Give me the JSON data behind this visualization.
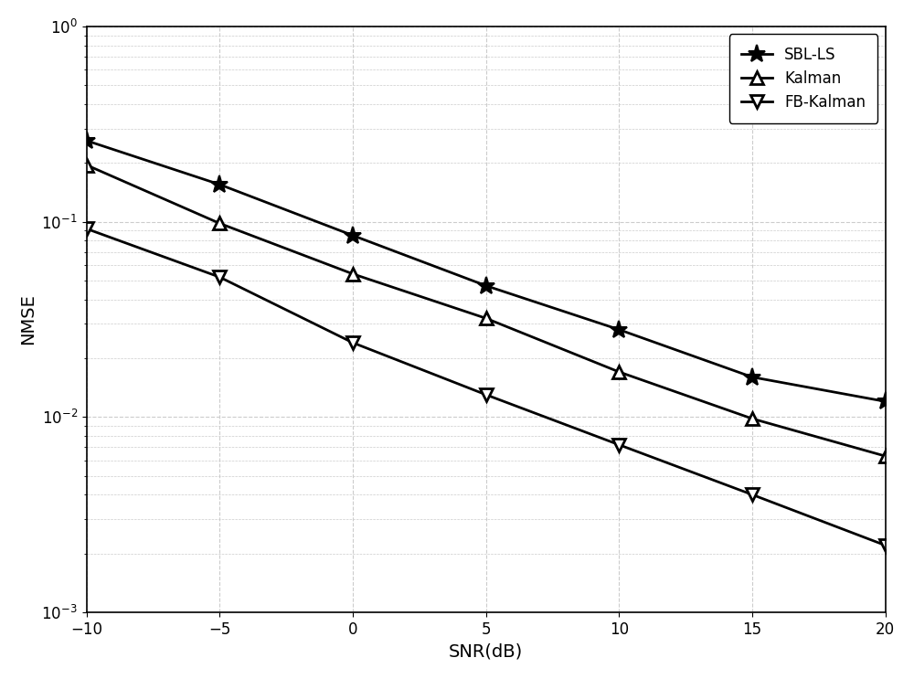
{
  "snr": [
    -10,
    -5,
    0,
    5,
    10,
    15,
    20
  ],
  "sbl_ls": [
    0.26,
    0.155,
    0.085,
    0.047,
    0.028,
    0.016,
    0.012
  ],
  "kalman": [
    0.195,
    0.098,
    0.054,
    0.032,
    0.017,
    0.0098,
    0.0063
  ],
  "fb_kalman": [
    0.092,
    0.052,
    0.024,
    0.013,
    0.0072,
    0.004,
    0.0022
  ],
  "xlabel": "SNR(dB)",
  "ylabel": "NMSE",
  "ylim_low": 0.001,
  "ylim_high": 1.0,
  "xlim_low": -10,
  "xlim_high": 20,
  "xticks": [
    -10,
    -5,
    0,
    5,
    10,
    15,
    20
  ],
  "legend_labels": [
    "SBL-LS",
    "Kalman",
    "FB-Kalman"
  ],
  "line_color": "#000000",
  "background_color": "#ffffff",
  "grid_color": "#cccccc",
  "linewidth": 2.0,
  "markersize": 10
}
